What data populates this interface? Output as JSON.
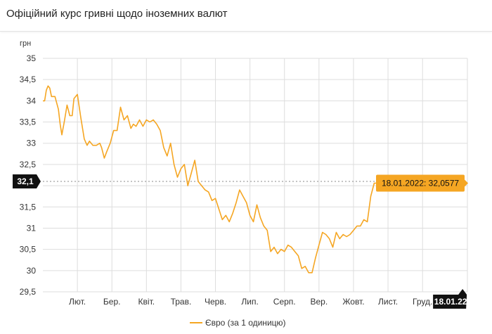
{
  "page": {
    "title": "Офіційний курс гривні щодо іноземних валют"
  },
  "colors": {
    "series": "#f5a623",
    "grid": "#dddddd",
    "tooltip_bg": "#f5a623",
    "marker_bg": "#111111"
  },
  "chart_data": {
    "type": "line",
    "ylabel": "грн",
    "ylim": [
      29.5,
      35
    ],
    "yticks": [
      "35",
      "34,5",
      "34",
      "33,5",
      "33",
      "32,5",
      "32",
      "31,5",
      "31",
      "30,5",
      "30",
      "29,5"
    ],
    "ytick_values": [
      35,
      34.5,
      34,
      33.5,
      33,
      32.5,
      32,
      31.5,
      31,
      30.5,
      30,
      29.5
    ],
    "xlim": [
      0,
      12.3
    ],
    "xticks": [
      "Лют.",
      "Бер.",
      "Квіт.",
      "Трав.",
      "Черв.",
      "Лип.",
      "Серп.",
      "Вер.",
      "Жовт.",
      "Лист.",
      "Груд."
    ],
    "xtick_values": [
      1,
      2,
      3,
      4,
      5,
      6,
      7,
      8,
      9,
      10,
      11
    ],
    "grid": true,
    "legend_position": "bottom",
    "y_marker_label": "32,1",
    "y_marker_value": 32.1,
    "x_marker_label": "18.01.22",
    "tooltip": "18.01.2022: 32,0577",
    "series": [
      {
        "name": "Євро (за 1 одиницю)",
        "x": [
          0,
          0.05,
          0.1,
          0.15,
          0.2,
          0.25,
          0.3,
          0.35,
          0.45,
          0.5,
          0.55,
          0.62,
          0.7,
          0.78,
          0.85,
          0.9,
          1.0,
          1.1,
          1.2,
          1.28,
          1.35,
          1.45,
          1.55,
          1.65,
          1.7,
          1.78,
          1.85,
          1.95,
          2.05,
          2.15,
          2.25,
          2.35,
          2.45,
          2.55,
          2.62,
          2.7,
          2.8,
          2.9,
          3.0,
          3.1,
          3.2,
          3.3,
          3.4,
          3.5,
          3.6,
          3.7,
          3.8,
          3.9,
          4.0,
          4.1,
          4.2,
          4.3,
          4.4,
          4.5,
          4.6,
          4.7,
          4.8,
          4.9,
          5.0,
          5.1,
          5.2,
          5.3,
          5.4,
          5.5,
          5.6,
          5.7,
          5.8,
          5.9,
          6.0,
          6.1,
          6.2,
          6.3,
          6.4,
          6.5,
          6.6,
          6.7,
          6.8,
          6.9,
          7.0,
          7.1,
          7.2,
          7.3,
          7.4,
          7.5,
          7.6,
          7.7,
          7.8,
          7.9,
          8.0,
          8.1,
          8.2,
          8.3,
          8.4,
          8.5,
          8.6,
          8.7,
          8.8,
          8.9,
          9.0,
          9.1,
          9.2,
          9.3,
          9.4,
          9.5,
          9.6,
          9.7,
          9.8,
          9.9,
          10.0,
          10.1,
          10.2,
          10.3,
          10.4,
          10.5,
          10.6,
          10.7,
          10.8,
          10.9,
          11.0,
          11.1,
          11.2,
          11.3,
          11.4,
          11.5,
          11.6,
          11.7,
          11.8,
          11.9,
          12.0,
          12.05,
          12.1,
          12.16
        ],
        "y": [
          34.0,
          34.0,
          34.25,
          34.35,
          34.3,
          34.1,
          34.1,
          34.1,
          33.8,
          33.45,
          33.2,
          33.5,
          33.9,
          33.65,
          33.65,
          34.05,
          34.15,
          33.6,
          33.1,
          32.95,
          33.05,
          32.95,
          32.95,
          33.0,
          32.9,
          32.65,
          32.8,
          33.0,
          33.3,
          33.3,
          33.85,
          33.55,
          33.65,
          33.35,
          33.45,
          33.4,
          33.55,
          33.4,
          33.55,
          33.5,
          33.55,
          33.45,
          33.3,
          32.9,
          32.7,
          33.0,
          32.5,
          32.2,
          32.4,
          32.5,
          32.0,
          32.3,
          32.6,
          32.1,
          32.0,
          31.9,
          31.85,
          31.65,
          31.7,
          31.45,
          31.2,
          31.3,
          31.15,
          31.35,
          31.6,
          31.9,
          31.75,
          31.6,
          31.3,
          31.15,
          31.55,
          31.25,
          31.05,
          30.95,
          30.45,
          30.55,
          30.4,
          30.5,
          30.45,
          30.6,
          30.55,
          30.45,
          30.35,
          30.05,
          30.1,
          29.95,
          29.95,
          30.3,
          30.6,
          30.9,
          30.85,
          30.75,
          30.55,
          30.9,
          30.75,
          30.85,
          30.8,
          30.85,
          30.95,
          31.05,
          31.05,
          31.2,
          31.15,
          31.75,
          32.06,
          32.06,
          32.06,
          32.06,
          32.06,
          32.06,
          32.06,
          32.06,
          32.06,
          32.06,
          32.06,
          32.06,
          32.06,
          32.06,
          32.06,
          32.06,
          32.06,
          32.06,
          32.06,
          32.06,
          32.06,
          32.06,
          32.06,
          32.06,
          32.06,
          32.06,
          32.06,
          32.06
        ]
      }
    ]
  }
}
